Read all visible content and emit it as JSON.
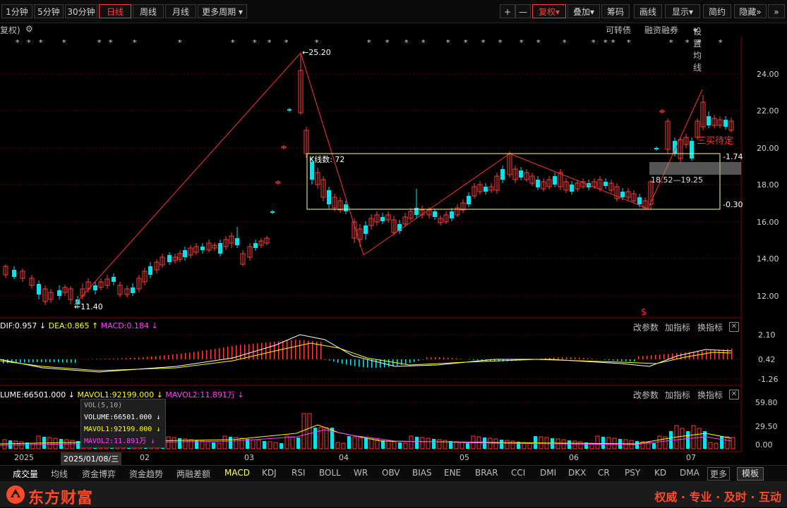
{
  "toolbar": {
    "periods": [
      "1分钟",
      "5分钟",
      "30分钟",
      "日线",
      "周线",
      "月线",
      "更多周期"
    ],
    "active_period": "日线",
    "right": {
      "plus": "+",
      "minus": "—",
      "fuquan": "复权",
      "diejia": "叠加",
      "chouma": "筹码",
      "huaxian": "画线",
      "xianshi": "显示",
      "jianyue": "简约",
      "yincang": "隐藏",
      "arrow": "»",
      "dropdown": "▾"
    }
  },
  "subheader": {
    "left": "复权)",
    "gear": "⚙",
    "kezhuanzhai": "可转债",
    "rongzi": "融资融券",
    "shezhi": "设置均线"
  },
  "colors": {
    "up": "#ff3b3b",
    "down": "#00e5ee",
    "dif": "#ffffff",
    "dea": "#ffff00",
    "macd": "#ff40ff",
    "box": "#ffff80",
    "grid": "#5a0000"
  },
  "kline": {
    "price_axis": [
      "24.00",
      "22.00",
      "20.00",
      "18.00",
      "16.00",
      "14.00",
      "12.00"
    ],
    "high_label": "←25.20",
    "low_label": "←11.40",
    "box_label": "K线数: 72",
    "range_label": "18.52—19.25",
    "right_label_top": "-1.74",
    "right_label_bottom": "-0.30",
    "signal": "三买待定",
    "dollar": "$",
    "stars": [
      "* * *",
      "*",
      "* *",
      "*",
      "*",
      "* *",
      "* * *",
      "* * *",
      "* * *",
      "*",
      "*",
      "*",
      "*",
      "*",
      "*",
      "*",
      "* *",
      "*",
      "* *",
      "* * *",
      "*"
    ]
  },
  "macd": {
    "dif": "DIF:0.957",
    "dea": "DEA:0.865",
    "macd": "MACD:0.184",
    "axis": [
      "2.10",
      "0.42",
      "-1.26"
    ],
    "buttons": [
      "改参数",
      "加指标",
      "换指标"
    ],
    "close": "✕"
  },
  "volume": {
    "volume": "LUME:66501.000",
    "mavol1": "MAVOL1:92199.000",
    "mavol2": "MAVOL2:11.891万",
    "axis": [
      "59.80",
      "29.50",
      "0.00"
    ],
    "buttons": [
      "改参数",
      "加指标",
      "换指标"
    ],
    "close": "✕"
  },
  "tooltip": {
    "title": "VOL(5,10)",
    "volume": "VOLUME:66501.000",
    "mavol1": "MAVOL1:92199.000",
    "mavol2": "MAVOL2:11.891万"
  },
  "dates": {
    "year": "2025",
    "cursor": "2025/01/08/三",
    "months": [
      "02",
      "03",
      "04",
      "05",
      "06",
      "07"
    ]
  },
  "tabs": [
    "成交量",
    "均线",
    "资金博弈",
    "资金趋势",
    "两融差额",
    "MACD",
    "KDJ",
    "RSI",
    "BOLL",
    "WR",
    "OBV",
    "BIAS",
    "ENE",
    "BRAR",
    "CCI",
    "DMI",
    "DKX",
    "CR",
    "PSY",
    "KD",
    "DMA",
    "更多"
  ],
  "moban": "模板",
  "footer": {
    "logo": "东方财富",
    "slogan": "权威 · 专业 · 及时 · 互动"
  }
}
